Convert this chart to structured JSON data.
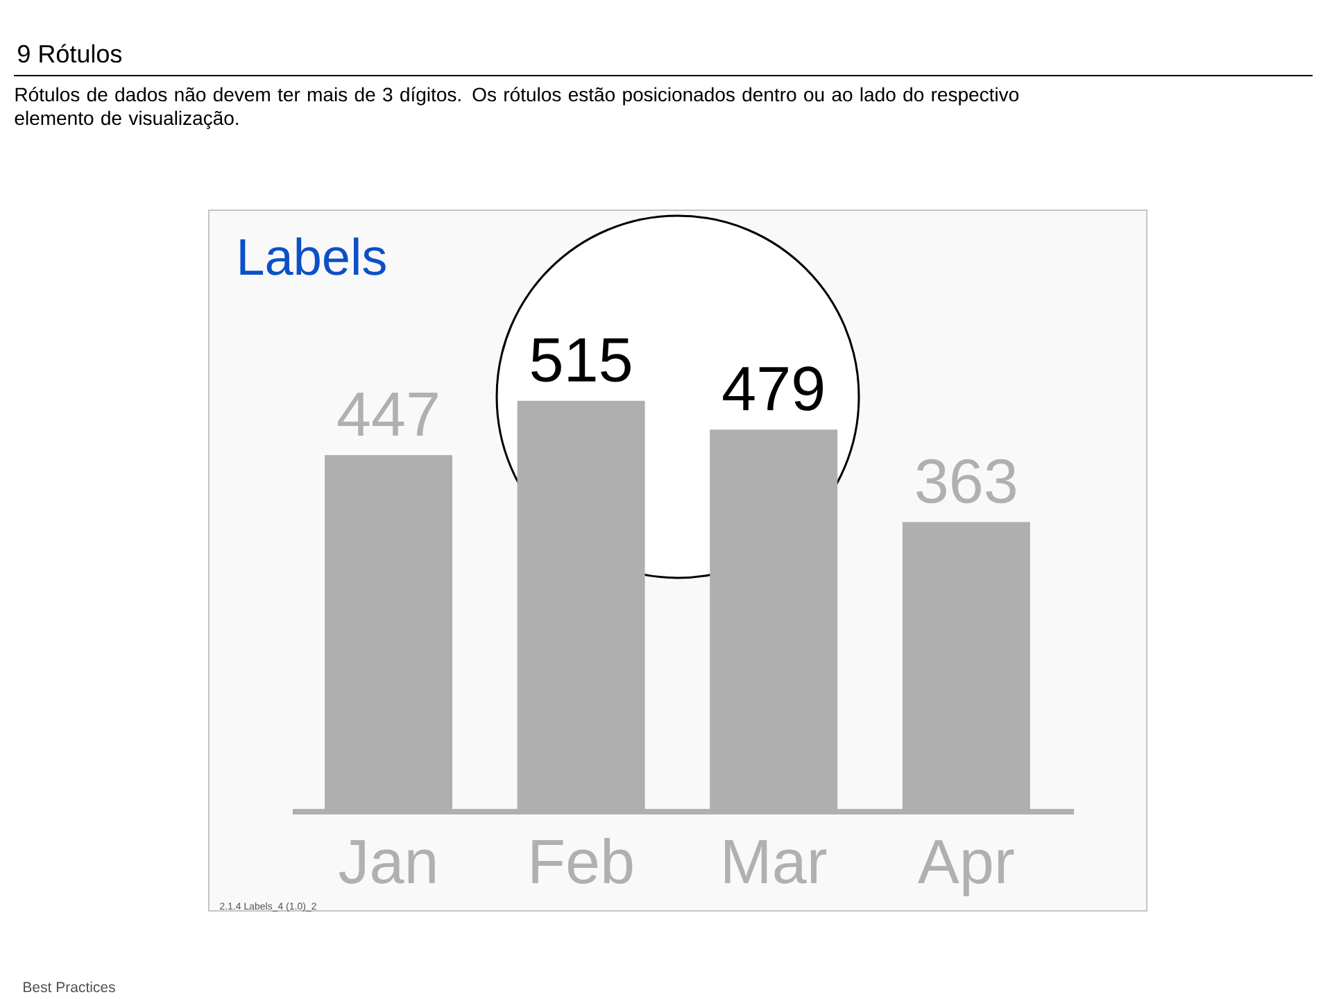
{
  "chart_data": {
    "type": "bar",
    "title": "9 Rótulos",
    "subtitle": "Rótulos de dados não devem ter mais de 3 dígitos. Os rótulos estão posicionados dentro ou ao lado do respectivo elemento de visualização.",
    "categories": [
      "Jan",
      "Feb",
      "Mar",
      "Apr"
    ],
    "values": [
      447,
      515,
      479,
      363
    ],
    "color": "#afafaf",
    "data_labels": true,
    "annotations": [
      "Labels",
      "2.1.4 Labels_4 (1.0)_2",
      "Best Practices"
    ]
  }
}
